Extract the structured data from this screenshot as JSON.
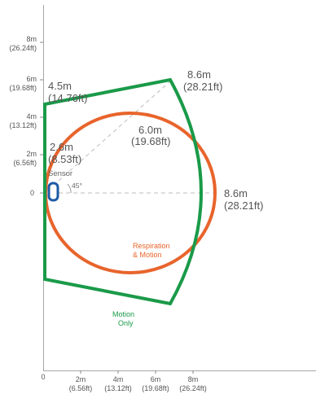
{
  "colors": {
    "motion_zone": "#1a9a49",
    "respiration_zone": "#e8642c",
    "sensor": "#1f5ba6",
    "guide_line": "#bdbdbd",
    "text": "#555555"
  },
  "y_axis_ticks": [
    {
      "meters": "8m",
      "feet": "(26.24ft)",
      "value": 8
    },
    {
      "meters": "6m",
      "feet": "(19.68ft)",
      "value": 6
    },
    {
      "meters": "4m",
      "feet": "(13.12ft)",
      "value": 4
    },
    {
      "meters": "2m",
      "feet": "(6.56ft)",
      "value": 2
    }
  ],
  "y_zero": "0",
  "x_axis_ticks": [
    {
      "meters": "2m",
      "feet": "(6.56ft)",
      "value": 2
    },
    {
      "meters": "4m",
      "feet": "(13.12ft)",
      "value": 4
    },
    {
      "meters": "6m",
      "feet": "(19.68ft)",
      "value": 6
    },
    {
      "meters": "8m",
      "feet": "(26.24ft)",
      "value": 8
    }
  ],
  "x_zero": "0",
  "range_labels": {
    "top_left": {
      "meters": "4.5m",
      "feet": "(14.76ft)"
    },
    "top_corner": {
      "meters": "8.6m",
      "feet": "(28.21ft)"
    },
    "respiration_diagonal": {
      "meters": "6.0m",
      "feet": "(19.68ft)"
    },
    "respiration_height": {
      "meters": "2.6m",
      "feet": "(8.53ft)"
    },
    "forward": {
      "meters": "8.6m",
      "feet": "(28.21ft)"
    }
  },
  "sensor_label": "Sensor",
  "angle_label": "45°",
  "respiration_label": [
    "Respiration",
    "& Motion"
  ],
  "motion_label": [
    "Motion",
    "Only"
  ]
}
